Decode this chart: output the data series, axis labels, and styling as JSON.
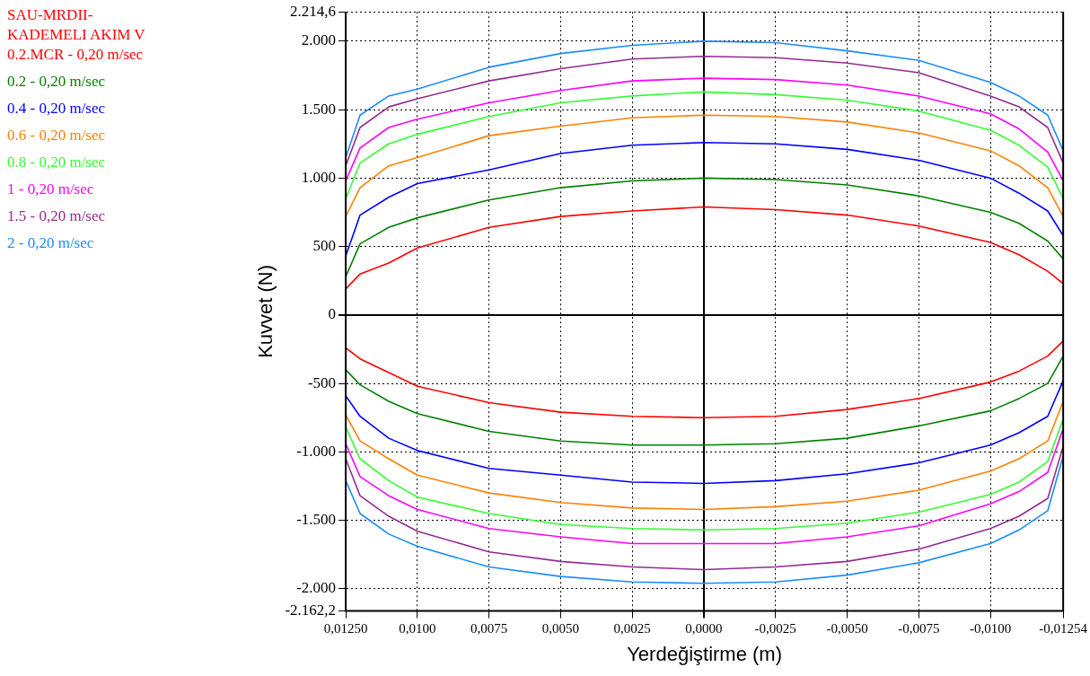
{
  "chart_data": {
    "type": "line",
    "xlabel": "Yerdeğiştirme (m)",
    "ylabel": "Kuvvet (N)",
    "x": [
      0.0125,
      0.012,
      0.011,
      0.01,
      0.0075,
      0.005,
      0.0025,
      0,
      -0.0025,
      -0.005,
      -0.0075,
      -0.01,
      -0.011,
      -0.012,
      -0.01254
    ],
    "series": [
      {
        "name": "SAU-MRDII-KADEMELI AKIM V 0.2.MCR - 0,20 m/sec",
        "color": "#ff0000",
        "values": [
          190,
          300,
          380,
          490,
          640,
          720,
          760,
          790,
          770,
          730,
          650,
          530,
          440,
          320,
          230
        ]
      },
      {
        "color": "#ff0000",
        "x": [
          -0.01254,
          -0.012,
          -0.011,
          -0.01,
          -0.0075,
          -0.005,
          -0.0025,
          0,
          0.0025,
          0.005,
          0.0075,
          0.01,
          0.011,
          0.012,
          0.0125
        ],
        "values": [
          -190,
          -300,
          -410,
          -490,
          -610,
          -690,
          -740,
          -750,
          -740,
          -710,
          -640,
          -520,
          -420,
          -320,
          -240
        ]
      },
      {
        "name": "0.2 - 0,20 m/sec",
        "color": "#008000",
        "values": [
          280,
          520,
          640,
          710,
          840,
          930,
          980,
          1000,
          990,
          950,
          870,
          750,
          670,
          540,
          410
        ]
      },
      {
        "color": "#008000",
        "x": [
          -0.01254,
          -0.012,
          -0.011,
          -0.01,
          -0.0075,
          -0.005,
          -0.0025,
          0,
          0.0025,
          0.005,
          0.0075,
          0.01,
          0.011,
          0.012,
          0.0125
        ],
        "values": [
          -300,
          -500,
          -610,
          -700,
          -810,
          -900,
          -940,
          -950,
          -950,
          -920,
          -850,
          -720,
          -630,
          -510,
          -400
        ]
      },
      {
        "name": "0.4 - 0,20 m/sec",
        "color": "#0000ff",
        "values": [
          430,
          730,
          860,
          960,
          1060,
          1180,
          1240,
          1260,
          1250,
          1210,
          1130,
          1000,
          890,
          760,
          580
        ]
      },
      {
        "color": "#0000ff",
        "x": [
          -0.01254,
          -0.012,
          -0.011,
          -0.01,
          -0.0075,
          -0.005,
          -0.0025,
          0,
          0.0025,
          0.005,
          0.0075,
          0.01,
          0.011,
          0.012,
          0.0125
        ],
        "values": [
          -480,
          -740,
          -860,
          -950,
          -1080,
          -1160,
          -1210,
          -1230,
          -1220,
          -1170,
          -1120,
          -990,
          -900,
          -740,
          -590
        ]
      },
      {
        "name": "0.6 - 0,20 m/sec",
        "color": "#ff8000",
        "values": [
          720,
          930,
          1090,
          1150,
          1310,
          1380,
          1440,
          1460,
          1450,
          1410,
          1330,
          1200,
          1090,
          930,
          720
        ]
      },
      {
        "color": "#ff8000",
        "x": [
          -0.01254,
          -0.012,
          -0.011,
          -0.01,
          -0.0075,
          -0.005,
          -0.0025,
          0,
          0.0025,
          0.005,
          0.0075,
          0.01,
          0.011,
          0.012,
          0.0125
        ],
        "values": [
          -630,
          -920,
          -1050,
          -1140,
          -1280,
          -1360,
          -1400,
          -1420,
          -1410,
          -1370,
          -1300,
          -1170,
          -1050,
          -920,
          -730
        ]
      },
      {
        "name": "0.8 - 0,20 m/sec",
        "color": "#33ff33",
        "values": [
          850,
          1110,
          1250,
          1320,
          1450,
          1550,
          1600,
          1630,
          1610,
          1570,
          1490,
          1350,
          1240,
          1080,
          850
        ]
      },
      {
        "color": "#33ff33",
        "x": [
          -0.01254,
          -0.012,
          -0.011,
          -0.01,
          -0.0075,
          -0.005,
          -0.0025,
          0,
          0.0025,
          0.005,
          0.0075,
          0.01,
          0.011,
          0.012,
          0.0125
        ],
        "values": [
          -760,
          -1070,
          -1220,
          -1310,
          -1440,
          -1520,
          -1560,
          -1570,
          -1560,
          -1530,
          -1450,
          -1330,
          -1210,
          -1050,
          -820
        ]
      },
      {
        "name": "1 - 0,20 m/sec",
        "color": "#ff00ff",
        "values": [
          980,
          1220,
          1370,
          1430,
          1550,
          1640,
          1710,
          1730,
          1720,
          1680,
          1600,
          1470,
          1360,
          1190,
          980
        ]
      },
      {
        "color": "#ff00ff",
        "x": [
          -0.01254,
          -0.012,
          -0.011,
          -0.01,
          -0.0075,
          -0.005,
          -0.0025,
          0,
          0.0025,
          0.005,
          0.0075,
          0.01,
          0.011,
          0.012,
          0.0125
        ],
        "values": [
          -830,
          -1150,
          -1290,
          -1380,
          -1540,
          -1620,
          -1670,
          -1670,
          -1670,
          -1620,
          -1560,
          -1420,
          -1320,
          -1180,
          -940
        ]
      },
      {
        "name": "1.5 - 0,20 m/sec",
        "color": "#922b92",
        "values": [
          1090,
          1370,
          1520,
          1580,
          1710,
          1800,
          1870,
          1890,
          1880,
          1840,
          1770,
          1600,
          1520,
          1370,
          1110
        ]
      },
      {
        "color": "#922b92",
        "x": [
          -0.01254,
          -0.012,
          -0.011,
          -0.01,
          -0.0075,
          -0.005,
          -0.0025,
          0,
          0.0025,
          0.005,
          0.0075,
          0.01,
          0.011,
          0.012,
          0.0125
        ],
        "values": [
          -960,
          -1340,
          -1470,
          -1560,
          -1710,
          -1800,
          -1840,
          -1860,
          -1840,
          -1800,
          -1730,
          -1580,
          -1470,
          -1320,
          -1050
        ]
      },
      {
        "name": "2 - 0,20 m/sec",
        "color": "#1a8cff",
        "values": [
          1150,
          1460,
          1600,
          1650,
          1810,
          1910,
          1970,
          2000,
          1990,
          1930,
          1860,
          1700,
          1600,
          1460,
          1200
        ]
      },
      {
        "color": "#1a8cff",
        "x": [
          -0.01254,
          -0.012,
          -0.011,
          -0.01,
          -0.0075,
          -0.005,
          -0.0025,
          0,
          0.0025,
          0.005,
          0.0075,
          0.01,
          0.011,
          0.012,
          0.0125
        ],
        "values": [
          -1030,
          -1430,
          -1570,
          -1670,
          -1810,
          -1900,
          -1950,
          -1960,
          -1950,
          -1910,
          -1840,
          -1690,
          -1600,
          -1450,
          -1210
        ]
      }
    ],
    "xlim": [
      0.0125,
      -0.01254
    ],
    "xticks": [
      {
        "value": 0.0125,
        "label": "0,01250"
      },
      {
        "value": 0.01,
        "label": "0,0100"
      },
      {
        "value": 0.0075,
        "label": "0,0075"
      },
      {
        "value": 0.005,
        "label": "0,0050"
      },
      {
        "value": 0.0025,
        "label": "0,0025"
      },
      {
        "value": 0,
        "label": "0,0000"
      },
      {
        "value": -0.0025,
        "label": "-0,0025"
      },
      {
        "value": -0.005,
        "label": "-0,0050"
      },
      {
        "value": -0.0075,
        "label": "-0,0075"
      },
      {
        "value": -0.01,
        "label": "-0,0100"
      },
      {
        "value": -0.01254,
        "label": "-0,01254"
      }
    ],
    "ylim": [
      -2162.2,
      2214.6
    ],
    "yticks": [
      {
        "value": -2162.2,
        "label": "-2.162,2"
      },
      {
        "value": -2000,
        "label": "-2.000"
      },
      {
        "value": -1500,
        "label": "-1.500"
      },
      {
        "value": -1000,
        "label": "-1.000"
      },
      -500,
      0,
      500,
      {
        "value": 1000,
        "label": "1.000"
      },
      {
        "value": 1500,
        "label": "1.500"
      },
      {
        "value": 2000,
        "label": "2.000"
      },
      {
        "value": 2214.6,
        "label": "2.214,6"
      }
    ],
    "grid": true,
    "legend": "top left"
  }
}
